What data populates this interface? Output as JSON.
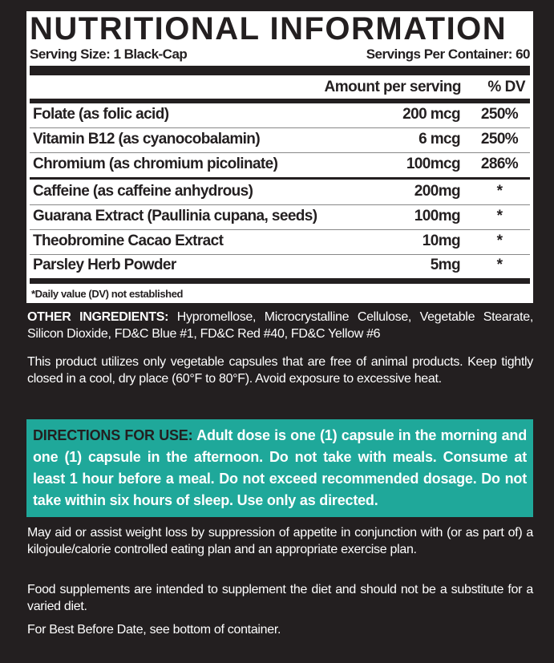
{
  "panel": {
    "title": "NUTRITIONAL INFORMATION",
    "serving_size": "Serving Size: 1 Black-Cap",
    "servings_per_container": "Servings Per Container: 60",
    "col_amount": "Amount per serving",
    "col_dv": "% DV",
    "rows": [
      {
        "name": "Folate (as folic acid)",
        "amount": "200 mcg",
        "dv": "250%"
      },
      {
        "name": "Vitamin B12 (as cyanocobalamin)",
        "amount": "6 mcg",
        "dv": "250%"
      },
      {
        "name": "Chromium (as chromium picolinate)",
        "amount": "100mcg",
        "dv": "286%"
      },
      {
        "name": "Caffeine (as caffeine anhydrous)",
        "amount": "200mg",
        "dv": "*"
      },
      {
        "name": "Guarana Extract (Paullinia cupana, seeds)",
        "amount": "100mg",
        "dv": "*"
      },
      {
        "name": "Theobromine Cacao Extract",
        "amount": "10mg",
        "dv": "*"
      },
      {
        "name": "Parsley Herb Powder",
        "amount": "5mg",
        "dv": "*"
      }
    ],
    "footnote": "*Daily value (DV) not established"
  },
  "other_ingredients": {
    "label": "OTHER INGREDIENTS:",
    "text": " Hypromellose, Microcrystalline Cellulose, Vegetable Stearate, Silicon Dioxide, FD&C Blue #1, FD&C Red #40, FD&C Yellow #6"
  },
  "storage": "This product utilizes only vegetable capsules that are free of animal products. Keep tightly closed in a cool, dry place (60°F to 80°F). Avoid exposure to excessive heat.",
  "directions": {
    "label": "DIRECTIONS FOR USE:",
    "text": " Adult dose is one (1) capsule in the morning and one (1) capsule in the afternoon. Do not take with meals. Consume at least 1 hour before a meal. Do not exceed recommended dosage. Do not take within six hours of sleep. Use only as directed.",
    "color": "#1fa89a"
  },
  "notes": [
    "May aid or assist weight loss by suppression of appetite in conjunction with (or as part of) a kilojoule/calorie controlled eating plan and an appropriate exercise plan.",
    "Food supplements are intended to supplement the diet and should not be a substitute for a varied diet.",
    "For Best Before Date, see bottom of container."
  ]
}
